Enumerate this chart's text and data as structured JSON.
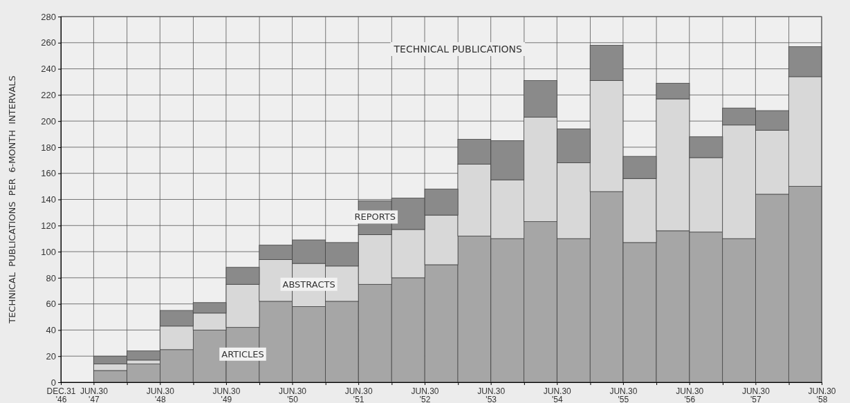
{
  "chart_data": {
    "type": "bar",
    "title": "TECHNICAL PUBLICATIONS",
    "ylabel": "TECHNICAL  PUBLICATIONS  PER  6-MONTH  INTERVALS",
    "stacked": true,
    "grid": true,
    "x": [
      "1947-09-30",
      "1948-03-31",
      "1948-09-30",
      "1949-03-31",
      "1949-09-30",
      "1950-03-31",
      "1950-09-30",
      "1951-03-31",
      "1951-09-30",
      "1952-03-31",
      "1952-09-30",
      "1953-03-31",
      "1953-09-30",
      "1954-03-31",
      "1954-09-30",
      "1955-03-31",
      "1955-09-30",
      "1956-03-31",
      "1956-09-30",
      "1957-03-31",
      "1957-09-30",
      "1958-03-31"
    ],
    "xlim": [
      "1946-12-31",
      "1958-06-30"
    ],
    "xticks": [
      {
        "value": "1946-12-31",
        "label": "DEC.31 '46"
      },
      {
        "value": "1947-06-30",
        "label": "JUN.30 '47"
      },
      {
        "value": "1947-12-31",
        "label": null
      },
      {
        "value": "1948-06-30",
        "label": "JUN.30 '48"
      },
      {
        "value": "1948-12-31",
        "label": null
      },
      {
        "value": "1949-06-30",
        "label": "JUN.30 '49"
      },
      {
        "value": "1949-12-31",
        "label": null
      },
      {
        "value": "1950-06-30",
        "label": "JUN.30 '50"
      },
      {
        "value": "1950-12-31",
        "label": null
      },
      {
        "value": "1951-06-30",
        "label": "JUN.30 '51"
      },
      {
        "value": "1951-12-31",
        "label": null
      },
      {
        "value": "1952-06-30",
        "label": "JUN.30 '52"
      },
      {
        "value": "1952-12-31",
        "label": null
      },
      {
        "value": "1953-06-30",
        "label": "JUN.30 '53"
      },
      {
        "value": "1953-12-31",
        "label": null
      },
      {
        "value": "1954-06-30",
        "label": "JUN.30 '54"
      },
      {
        "value": "1954-12-31",
        "label": null
      },
      {
        "value": "1955-06-30",
        "label": "JUN.30 '55"
      },
      {
        "value": "1955-12-31",
        "label": null
      },
      {
        "value": "1956-06-30",
        "label": "JUN.30 '56"
      },
      {
        "value": "1956-12-31",
        "label": null
      },
      {
        "value": "1957-06-30",
        "label": "JUN.30 '57"
      },
      {
        "value": "1957-12-31",
        "label": null
      },
      {
        "value": "1958-06-30",
        "label": "JUN.30 '58"
      }
    ],
    "ylim": [
      0,
      280
    ],
    "yticks": [
      0,
      20,
      40,
      60,
      80,
      100,
      120,
      140,
      160,
      180,
      200,
      220,
      240,
      260,
      280
    ],
    "series": [
      {
        "name": "ARTICLES",
        "color": "#a6a6a6",
        "values": [
          9,
          14,
          25,
          40,
          42,
          62,
          58,
          62,
          75,
          80,
          90,
          112,
          110,
          123,
          110,
          146,
          107,
          116,
          115,
          110,
          144,
          150
        ]
      },
      {
        "name": "ABSTRACTS",
        "color": "#d8d8d8",
        "values": [
          5,
          3,
          18,
          13,
          33,
          32,
          33,
          27,
          38,
          37,
          38,
          55,
          45,
          80,
          58,
          85,
          49,
          101,
          57,
          87,
          49,
          84
        ]
      },
      {
        "name": "REPORTS",
        "color": "#8a8a8a",
        "values": [
          6,
          7,
          12,
          8,
          13,
          11,
          18,
          18,
          26,
          24,
          20,
          19,
          30,
          28,
          26,
          27,
          17,
          12,
          16,
          13,
          15,
          23
        ]
      }
    ]
  }
}
